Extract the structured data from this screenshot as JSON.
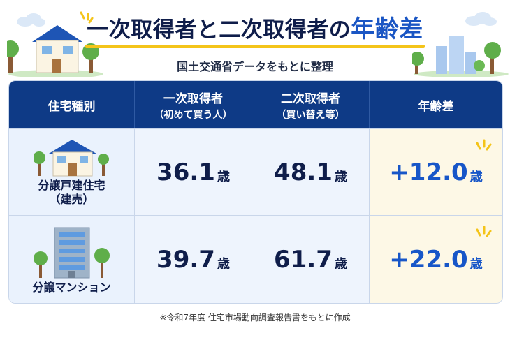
{
  "title": {
    "main": "一次取得者と二次取得者の",
    "accent": "年齢差"
  },
  "subtitle": "国土交通省データをもとに整理",
  "table": {
    "headers": [
      {
        "label": "住宅種別",
        "sub": ""
      },
      {
        "label": "一次取得者",
        "sub": "（初めて買う人）"
      },
      {
        "label": "二次取得者",
        "sub": "（買い替え等）"
      },
      {
        "label": "年齢差",
        "sub": ""
      }
    ],
    "rows": [
      {
        "type_line1": "分譲戸建住宅",
        "type_line2": "（建売）",
        "first": "36.1",
        "second": "48.1",
        "diff": "+12.0",
        "unit": "歳",
        "icon": "house-icon"
      },
      {
        "type_line1": "分譲マンション",
        "type_line2": "",
        "first": "39.7",
        "second": "61.7",
        "diff": "+22.0",
        "unit": "歳",
        "icon": "apartment-icon"
      }
    ]
  },
  "footnote": "※令和7年度 住宅市場動向調査報告書をもとに作成",
  "colors": {
    "header_bg": "#0e3a86",
    "accent_blue": "#1a56c4",
    "underline_yellow": "#f4c419",
    "diff_bg": "#fdf8e6"
  }
}
